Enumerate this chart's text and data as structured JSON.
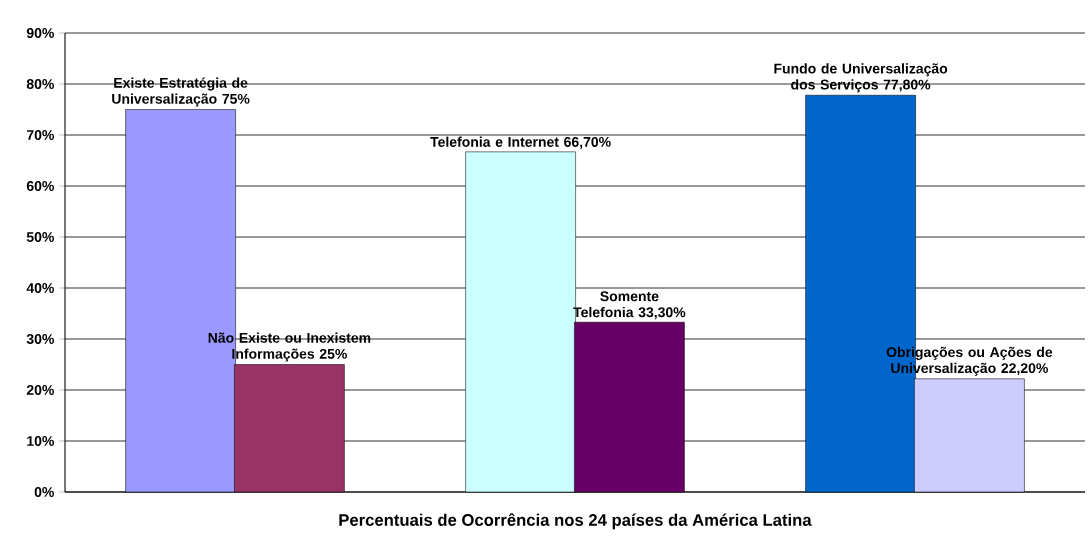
{
  "chart_data": {
    "type": "bar",
    "xlabel": "**Percentuais de Ocorrência nos 24 países da América Latina**",
    "categories": [
      null,
      null,
      null
    ],
    "series": [
      {
        "values": [
          75,
          66.7,
          77.8
        ],
        "colors": [
          "#9999ff",
          "#ccffff",
          "#0066cc"
        ],
        "value_labels": [
          "Existe Estratégia de Universalização 75%",
          "Telefonia e Internet 66,70%",
          "Fundo de Universalização dos Serviços 77,80%"
        ]
      },
      {
        "values": [
          25,
          33.3,
          22.2
        ],
        "colors": [
          "#993366",
          "#660066",
          "#ccccff"
        ],
        "value_labels": [
          "Não Existe ou Inexistem Informações 25%",
          "Somente Telefonia 33,30%",
          "Obrigações ou Ações de Universalização 22,20%"
        ]
      }
    ],
    "ylim": [
      0,
      90
    ],
    "yticks": [
      {
        "value": 0,
        "label": "0%"
      },
      {
        "value": 10,
        "label": "10%"
      },
      {
        "value": 20,
        "label": "20%"
      },
      {
        "value": 30,
        "label": "30%"
      },
      {
        "value": 40,
        "label": "40%"
      },
      {
        "value": 50,
        "label": "50%"
      },
      {
        "value": 60,
        "label": "60%"
      },
      {
        "value": 70,
        "label": "70%"
      },
      {
        "value": 80,
        "label": "80%"
      },
      {
        "value": 90,
        "label": "90%"
      }
    ],
    "grid": "y"
  }
}
